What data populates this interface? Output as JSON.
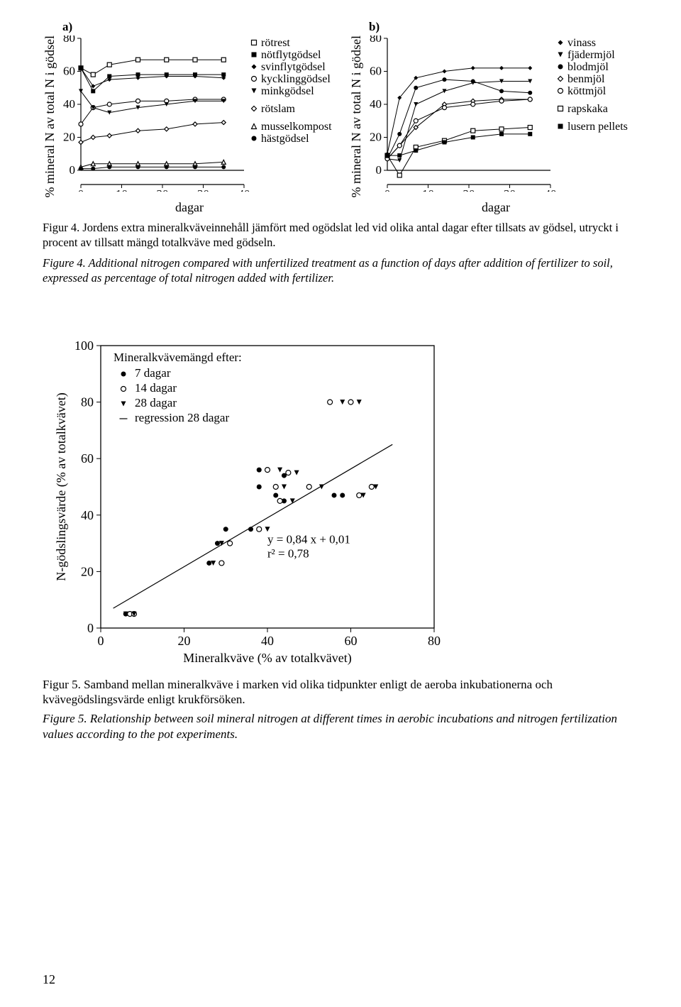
{
  "colors": {
    "stroke": "#000000",
    "bg": "#ffffff",
    "text": "#000000"
  },
  "font": {
    "axis_pt": 18,
    "caption_pt": 16.5,
    "legend_pt": 17,
    "eq_pt": 17
  },
  "chart_a": {
    "type": "line",
    "title_letter": "a)",
    "xlim": [
      0,
      40
    ],
    "xticks": [
      0,
      10,
      20,
      30,
      40
    ],
    "ylim": [
      0,
      80
    ],
    "yticks": [
      0,
      20,
      40,
      60,
      80
    ],
    "xlabel": "dagar",
    "ylabel": "% mineral N av total N i gödsel",
    "axis_color": "#000000",
    "line_width": 1,
    "marker_size": 6,
    "series": [
      {
        "key": "rotrest",
        "label": "rötrest",
        "marker": "square-open",
        "data": [
          [
            0,
            62
          ],
          [
            3,
            58
          ],
          [
            7,
            64
          ],
          [
            14,
            67
          ],
          [
            21,
            67
          ],
          [
            28,
            67
          ],
          [
            35,
            67
          ]
        ]
      },
      {
        "key": "notflytgodsel",
        "label": "nötflytgödsel",
        "marker": "square-filled",
        "data": [
          [
            0,
            62
          ],
          [
            3,
            48
          ],
          [
            7,
            57
          ],
          [
            14,
            58
          ],
          [
            21,
            58
          ],
          [
            28,
            58
          ],
          [
            35,
            58
          ]
        ]
      },
      {
        "key": "svinflytgodsel",
        "label": "svinflytgödsel",
        "marker": "diamond-filled",
        "data": [
          [
            0,
            62
          ],
          [
            3,
            51
          ],
          [
            7,
            55
          ],
          [
            14,
            56
          ],
          [
            21,
            57
          ],
          [
            28,
            57
          ],
          [
            35,
            56
          ]
        ]
      },
      {
        "key": "kycklinggodsel",
        "label": "kycklinggödsel",
        "marker": "circle-open",
        "data": [
          [
            0,
            28
          ],
          [
            3,
            38
          ],
          [
            7,
            40
          ],
          [
            14,
            42
          ],
          [
            21,
            42
          ],
          [
            28,
            43
          ],
          [
            35,
            43
          ]
        ]
      },
      {
        "key": "minkgodsel",
        "label": "minkgödsel",
        "marker": "triangle-down-filled",
        "data": [
          [
            0,
            48
          ],
          [
            3,
            38
          ],
          [
            7,
            35
          ],
          [
            14,
            38
          ],
          [
            21,
            40
          ],
          [
            28,
            42
          ],
          [
            35,
            42
          ]
        ]
      },
      {
        "key": "rotslam",
        "label": "rötslam",
        "marker": "diamond-open",
        "data": [
          [
            0,
            17
          ],
          [
            3,
            20
          ],
          [
            7,
            21
          ],
          [
            14,
            24
          ],
          [
            21,
            25
          ],
          [
            28,
            28
          ],
          [
            35,
            29
          ]
        ]
      },
      {
        "key": "musselkompost",
        "label": "musselkompost",
        "marker": "triangle-up-open",
        "data": [
          [
            0,
            2
          ],
          [
            3,
            4
          ],
          [
            7,
            4
          ],
          [
            14,
            4
          ],
          [
            21,
            4
          ],
          [
            28,
            4
          ],
          [
            35,
            5
          ]
        ]
      },
      {
        "key": "hastgodsel",
        "label": "hästgödsel",
        "marker": "circle-filled",
        "data": [
          [
            0,
            1
          ],
          [
            3,
            1
          ],
          [
            7,
            2
          ],
          [
            14,
            2
          ],
          [
            21,
            2
          ],
          [
            28,
            2
          ],
          [
            35,
            2
          ]
        ]
      }
    ]
  },
  "chart_b": {
    "type": "line",
    "title_letter": "b)",
    "xlim": [
      0,
      40
    ],
    "xticks": [
      0,
      10,
      20,
      30,
      40
    ],
    "ylim": [
      0,
      80
    ],
    "yticks": [
      0,
      20,
      40,
      60,
      80
    ],
    "xlabel": "dagar",
    "ylabel": "% mineral N av total N i gödsel",
    "axis_color": "#000000",
    "line_width": 1,
    "marker_size": 6,
    "series": [
      {
        "key": "vinass",
        "label": "vinass",
        "marker": "diamond-filled",
        "data": [
          [
            0,
            10
          ],
          [
            3,
            44
          ],
          [
            7,
            56
          ],
          [
            14,
            60
          ],
          [
            21,
            62
          ],
          [
            28,
            62
          ],
          [
            35,
            62
          ]
        ]
      },
      {
        "key": "fjadermjol",
        "label": "fjädermjöl",
        "marker": "triangle-down-filled",
        "data": [
          [
            0,
            7
          ],
          [
            3,
            6
          ],
          [
            7,
            40
          ],
          [
            14,
            48
          ],
          [
            21,
            53
          ],
          [
            28,
            54
          ],
          [
            35,
            54
          ]
        ]
      },
      {
        "key": "blodmjol",
        "label": "blodmjöl",
        "marker": "circle-filled",
        "data": [
          [
            0,
            7
          ],
          [
            3,
            22
          ],
          [
            7,
            50
          ],
          [
            14,
            55
          ],
          [
            21,
            54
          ],
          [
            28,
            48
          ],
          [
            35,
            47
          ]
        ]
      },
      {
        "key": "benmjol",
        "label": "benmjöl",
        "marker": "diamond-open",
        "data": [
          [
            0,
            7
          ],
          [
            3,
            15
          ],
          [
            7,
            26
          ],
          [
            14,
            40
          ],
          [
            21,
            42
          ],
          [
            28,
            43
          ],
          [
            35,
            43
          ]
        ]
      },
      {
        "key": "kottmjol",
        "label": "köttmjöl",
        "marker": "circle-open",
        "data": [
          [
            0,
            7
          ],
          [
            3,
            15
          ],
          [
            7,
            30
          ],
          [
            14,
            38
          ],
          [
            21,
            40
          ],
          [
            28,
            42
          ],
          [
            35,
            43
          ]
        ]
      },
      {
        "key": "rapskaka",
        "label": "rapskaka",
        "marker": "square-open",
        "data": [
          [
            0,
            9
          ],
          [
            3,
            -3
          ],
          [
            7,
            14
          ],
          [
            14,
            18
          ],
          [
            21,
            24
          ],
          [
            28,
            25
          ],
          [
            35,
            26
          ]
        ]
      },
      {
        "key": "lusern",
        "label": "lusern pellets",
        "marker": "square-filled",
        "data": [
          [
            0,
            9
          ],
          [
            3,
            9
          ],
          [
            7,
            12
          ],
          [
            14,
            17
          ],
          [
            21,
            20
          ],
          [
            28,
            22
          ],
          [
            35,
            22
          ]
        ]
      }
    ]
  },
  "caption4_sv": "Figur 4. Jordens extra mineralkväveinnehåll jämfört med ogödslat led vid olika antal dagar efter tillsats av gödsel, utryckt i procent av tillsatt mängd totalkväve med gödseln.",
  "caption4_en": "Figure 4. Additional nitrogen compared with unfertilized treatment as a function of days after addition of fertilizer to soil, expressed as percentage of total nitrogen added with fertilizer.",
  "chart5": {
    "type": "scatter",
    "xlim": [
      0,
      80
    ],
    "xticks": [
      0,
      20,
      40,
      60,
      80
    ],
    "ylim": [
      0,
      100
    ],
    "yticks": [
      0,
      20,
      40,
      60,
      80,
      100
    ],
    "xlabel": "Mineralkväve (% av totalkvävet)",
    "ylabel": "N-gödslingsvärde (% av totalkvävet)",
    "legend_title": "Mineralkvävemängd efter:",
    "legend_items": [
      {
        "marker": "circle-filled",
        "label": "7 dagar"
      },
      {
        "marker": "circle-open",
        "label": "14 dagar"
      },
      {
        "marker": "triangle-down-filled",
        "label": "28 dagar"
      },
      {
        "marker": "line",
        "label": "regression 28 dagar"
      }
    ],
    "equation": "y = 0,84 x + 0,01",
    "r2": "r² = 0,78",
    "regression_line": {
      "x1": 3,
      "y1": 7,
      "x2": 70,
      "y2": 65
    },
    "axis_color": "#000000",
    "line_width": 1,
    "marker_size": 7,
    "points": {
      "d7": [
        [
          6,
          5
        ],
        [
          7,
          5
        ],
        [
          26,
          23
        ],
        [
          28,
          30
        ],
        [
          30,
          35
        ],
        [
          36,
          35
        ],
        [
          38,
          50
        ],
        [
          38,
          56
        ],
        [
          42,
          47
        ],
        [
          44,
          45
        ],
        [
          44,
          54
        ],
        [
          50,
          50
        ],
        [
          56,
          47
        ],
        [
          58,
          47
        ]
      ],
      "d14": [
        [
          7,
          5
        ],
        [
          8,
          5
        ],
        [
          29,
          23
        ],
        [
          31,
          30
        ],
        [
          38,
          35
        ],
        [
          42,
          50
        ],
        [
          40,
          56
        ],
        [
          45,
          55
        ],
        [
          43,
          45
        ],
        [
          50,
          50
        ],
        [
          55,
          80
        ],
        [
          60,
          80
        ],
        [
          62,
          47
        ],
        [
          65,
          50
        ]
      ],
      "d28": [
        [
          6,
          5
        ],
        [
          8,
          5
        ],
        [
          27,
          23
        ],
        [
          29,
          30
        ],
        [
          40,
          35
        ],
        [
          44,
          50
        ],
        [
          43,
          56
        ],
        [
          47,
          55
        ],
        [
          46,
          45
        ],
        [
          53,
          50
        ],
        [
          58,
          80
        ],
        [
          62,
          80
        ],
        [
          63,
          47
        ],
        [
          66,
          50
        ]
      ]
    }
  },
  "caption5_sv": "Figur 5. Samband mellan mineralkväve i marken vid olika tidpunkter enligt de aeroba inkubationerna och kvävegödslingsvärde enligt krukförsöken.",
  "caption5_en": "Figure 5. Relationship between soil mineral nitrogen at different times in aerobic incubations and nitrogen fertilization values according to the pot experiments.",
  "page_number": "12"
}
